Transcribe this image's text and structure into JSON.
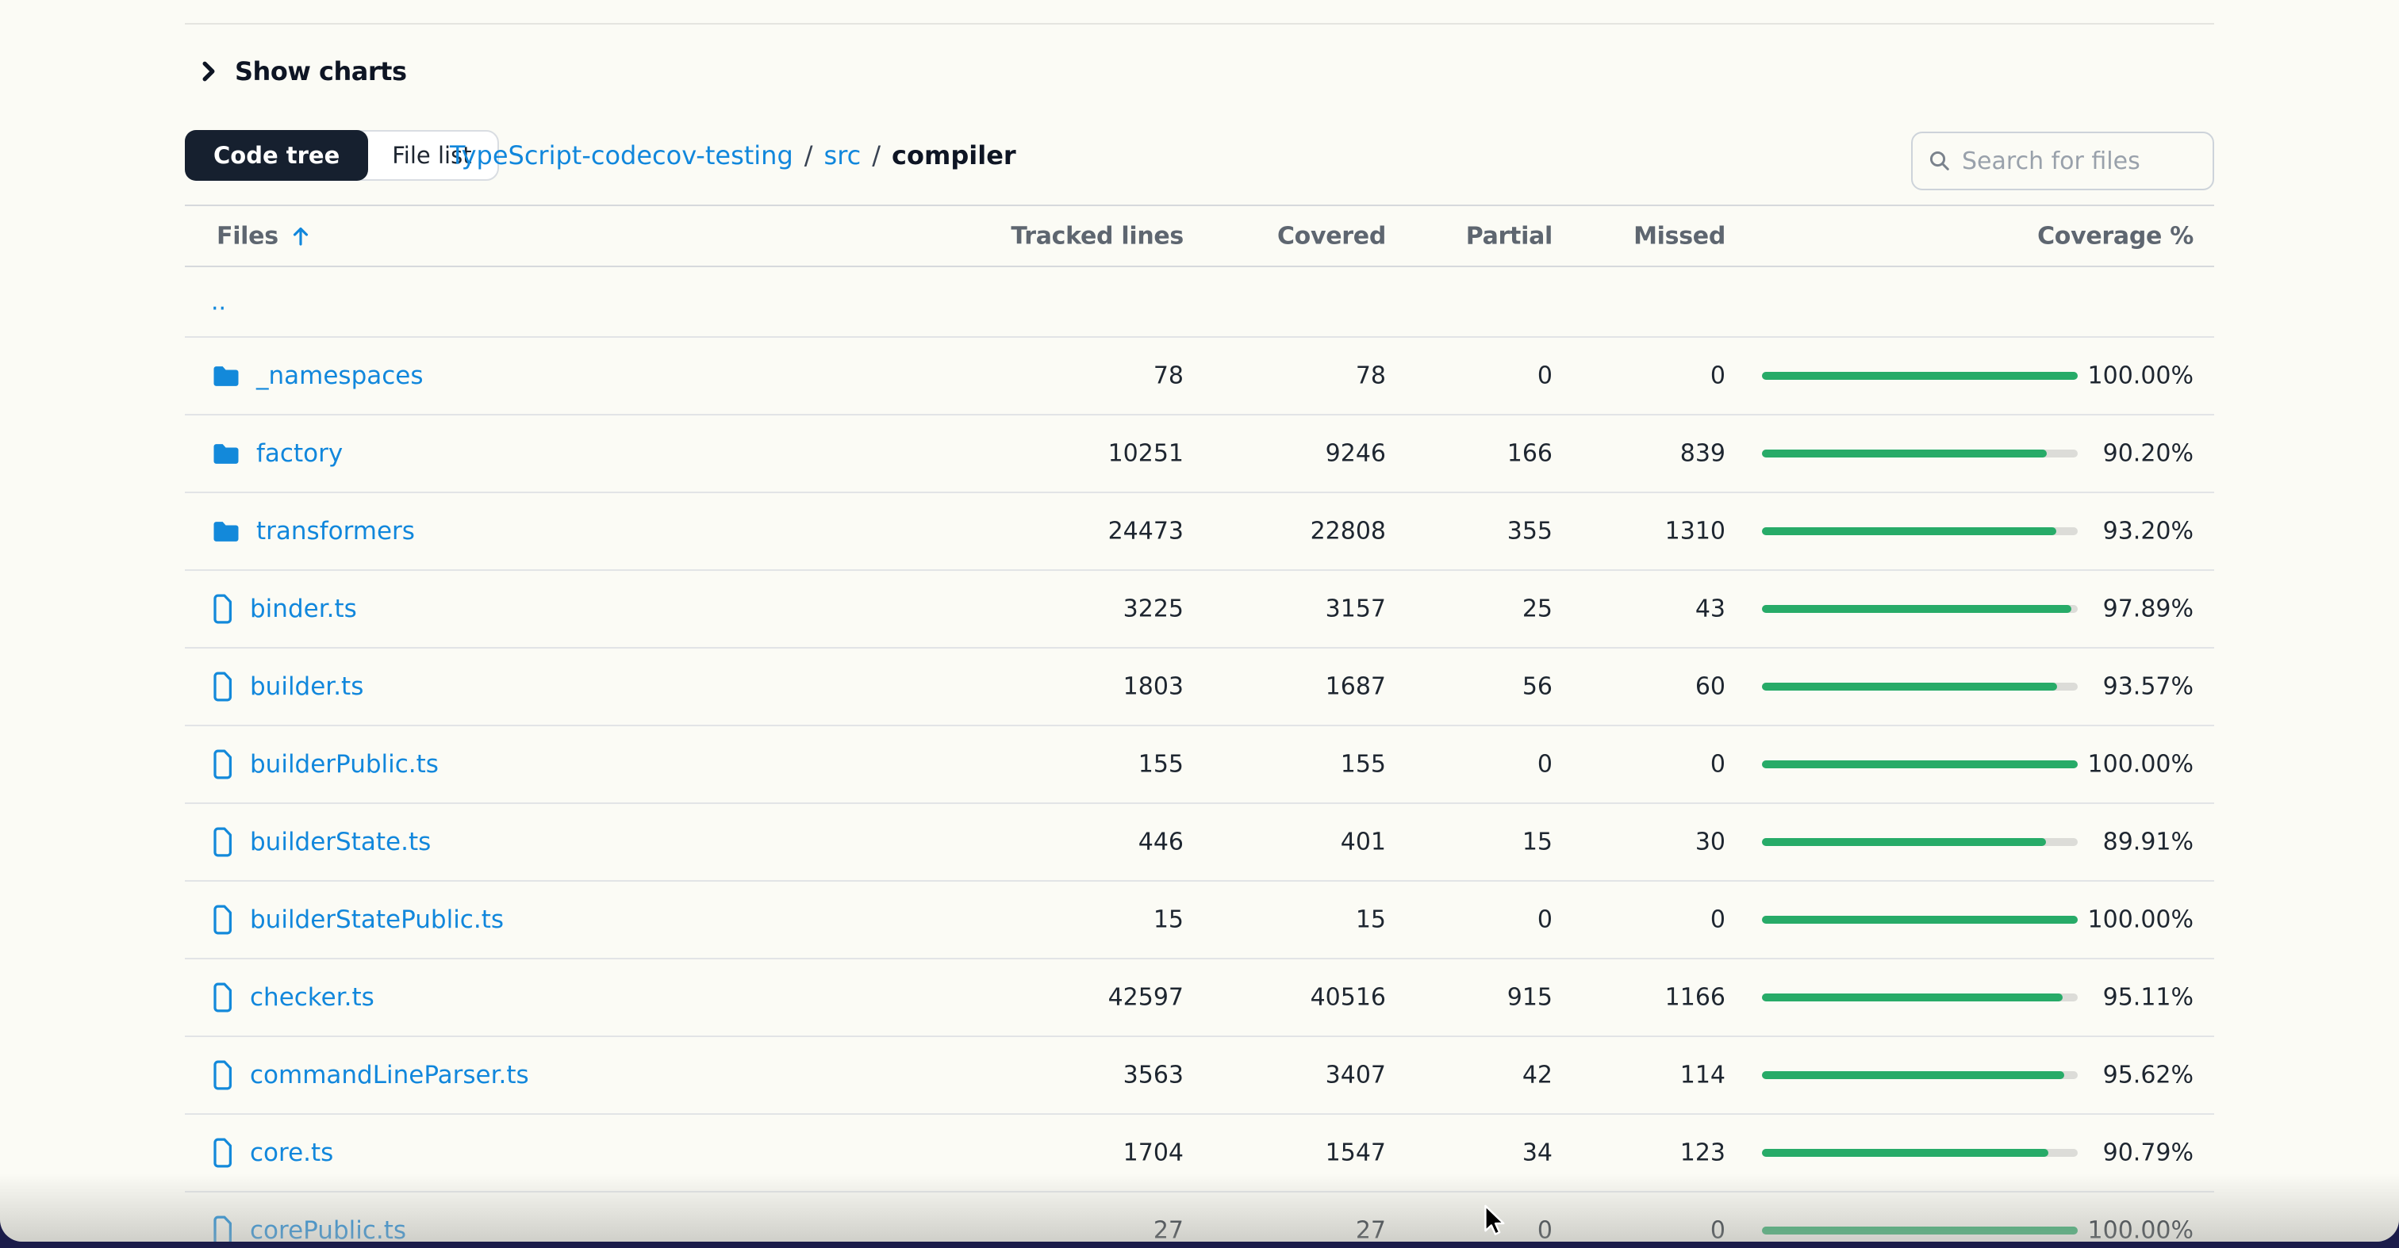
{
  "page": {
    "backdrop_color": "#1B1C4A",
    "card_color": "#FBFBF5"
  },
  "toolbar": {
    "show_charts_label": "Show charts"
  },
  "view_toggle": {
    "code_tree_label": "Code tree",
    "file_list_label": "File list",
    "active": "Code tree"
  },
  "breadcrumb": {
    "separator": "/",
    "repo_link": "TypeScript-codecov-testing",
    "src_link": "src",
    "current": "compiler"
  },
  "search": {
    "placeholder": "Search for files"
  },
  "table": {
    "columns": [
      "Files",
      "Tracked lines",
      "Covered",
      "Partial",
      "Missed",
      "Coverage %"
    ],
    "sort": {
      "column": "Files",
      "direction": "ascending"
    },
    "up_link": "..",
    "rows": [
      {
        "name": "_namespaces",
        "kind": "folder",
        "tracked": "78",
        "covered": "78",
        "partial": "0",
        "missed": "0",
        "coverage_pct": 100.0,
        "coverage_label": "100.00%"
      },
      {
        "name": "factory",
        "kind": "folder",
        "tracked": "10251",
        "covered": "9246",
        "partial": "166",
        "missed": "839",
        "coverage_pct": 90.2,
        "coverage_label": "90.20%"
      },
      {
        "name": "transformers",
        "kind": "folder",
        "tracked": "24473",
        "covered": "22808",
        "partial": "355",
        "missed": "1310",
        "coverage_pct": 93.2,
        "coverage_label": "93.20%"
      },
      {
        "name": "binder.ts",
        "kind": "file",
        "tracked": "3225",
        "covered": "3157",
        "partial": "25",
        "missed": "43",
        "coverage_pct": 97.89,
        "coverage_label": "97.89%"
      },
      {
        "name": "builder.ts",
        "kind": "file",
        "tracked": "1803",
        "covered": "1687",
        "partial": "56",
        "missed": "60",
        "coverage_pct": 93.57,
        "coverage_label": "93.57%"
      },
      {
        "name": "builderPublic.ts",
        "kind": "file",
        "tracked": "155",
        "covered": "155",
        "partial": "0",
        "missed": "0",
        "coverage_pct": 100.0,
        "coverage_label": "100.00%"
      },
      {
        "name": "builderState.ts",
        "kind": "file",
        "tracked": "446",
        "covered": "401",
        "partial": "15",
        "missed": "30",
        "coverage_pct": 89.91,
        "coverage_label": "89.91%"
      },
      {
        "name": "builderStatePublic.ts",
        "kind": "file",
        "tracked": "15",
        "covered": "15",
        "partial": "0",
        "missed": "0",
        "coverage_pct": 100.0,
        "coverage_label": "100.00%"
      },
      {
        "name": "checker.ts",
        "kind": "file",
        "tracked": "42597",
        "covered": "40516",
        "partial": "915",
        "missed": "1166",
        "coverage_pct": 95.11,
        "coverage_label": "95.11%"
      },
      {
        "name": "commandLineParser.ts",
        "kind": "file",
        "tracked": "3563",
        "covered": "3407",
        "partial": "42",
        "missed": "114",
        "coverage_pct": 95.62,
        "coverage_label": "95.62%"
      },
      {
        "name": "core.ts",
        "kind": "file",
        "tracked": "1704",
        "covered": "1547",
        "partial": "34",
        "missed": "123",
        "coverage_pct": 90.79,
        "coverage_label": "90.79%"
      },
      {
        "name": "corePublic.ts",
        "kind": "file",
        "tracked": "27",
        "covered": "27",
        "partial": "0",
        "missed": "0",
        "coverage_pct": 100.0,
        "coverage_label": "100.00%"
      }
    ]
  },
  "colors": {
    "link_blue": "#1187DC",
    "bar_green": "#27AB68",
    "bar_track": "#DCDCD8",
    "header_gray": "#5E6670",
    "active_toggle_navy": "#16202F"
  }
}
